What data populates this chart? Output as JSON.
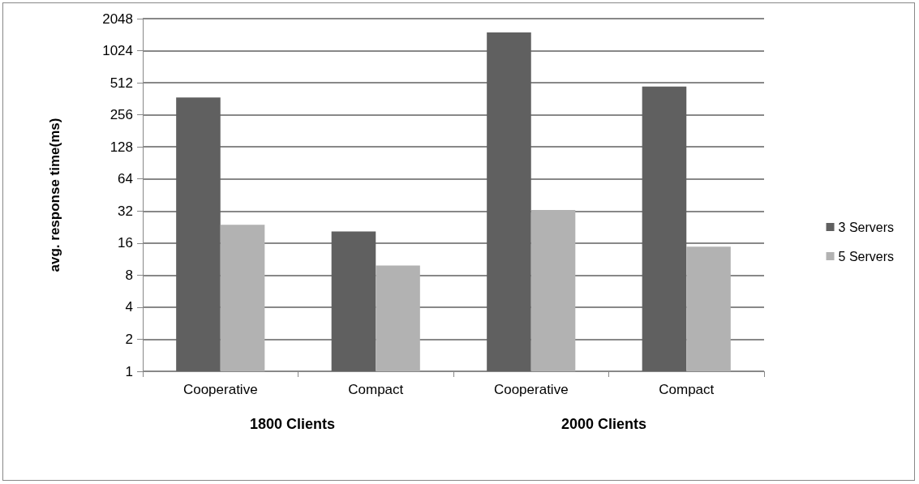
{
  "chart_data": {
    "type": "bar",
    "ylabel": "avg. response time(ms)",
    "categories": [
      "Cooperative",
      "Compact",
      "Cooperative",
      "Compact"
    ],
    "series": [
      {
        "name": "3 Servers",
        "color": "#606060",
        "values": [
          373,
          20.6,
          1518,
          472
        ]
      },
      {
        "name": "5 Servers",
        "color": "#b2b2b2",
        "values": [
          23.8,
          9.85,
          32.7,
          14.8
        ]
      }
    ],
    "log": true,
    "ylim": [
      1,
      2048
    ],
    "yticks": [
      1,
      2,
      4,
      8,
      16,
      32,
      64,
      128,
      256,
      512,
      1024,
      2048
    ],
    "grid": "y",
    "legend": "right",
    "annotations": [
      "1800 Clients",
      "2000 Clients"
    ]
  }
}
